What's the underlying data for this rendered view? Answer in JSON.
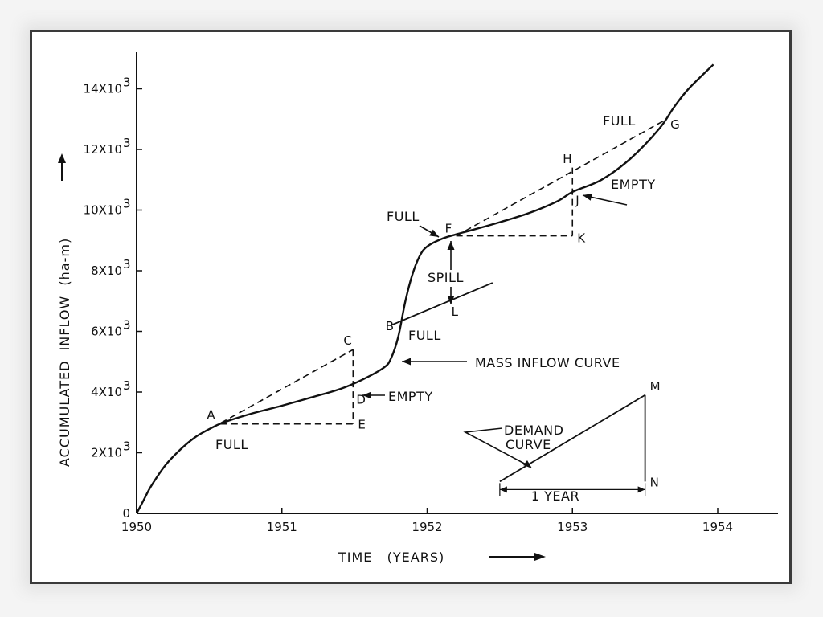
{
  "chart_data": {
    "type": "line",
    "xlabel": "TIME   (YEARS)",
    "ylabel": "ACCUMULATED  INFLOW  (ha-m)",
    "xlim": [
      1950,
      1954.4
    ],
    "ylim": [
      0,
      15000
    ],
    "x_ticks": [
      {
        "value": 1950,
        "label": "1950"
      },
      {
        "value": 1951,
        "label": "1951"
      },
      {
        "value": 1952,
        "label": "1952"
      },
      {
        "value": 1953,
        "label": "1953"
      },
      {
        "value": 1954,
        "label": "1954"
      }
    ],
    "y_ticks": [
      {
        "value": 0,
        "label": "0"
      },
      {
        "value": 2000,
        "label": "2X10"
      },
      {
        "value": 4000,
        "label": "4X10"
      },
      {
        "value": 6000,
        "label": "6X10"
      },
      {
        "value": 8000,
        "label": "8X10"
      },
      {
        "value": 10000,
        "label": "10X10"
      },
      {
        "value": 12000,
        "label": "12X10"
      },
      {
        "value": 14000,
        "label": "14X10"
      }
    ],
    "y_tick_exponent": "3",
    "mass_inflow_curve": {
      "x": [
        1950,
        1950.05,
        1950.1,
        1950.2,
        1950.3,
        1950.4,
        1950.5,
        1950.6,
        1950.8,
        1951.0,
        1951.2,
        1951.4,
        1951.55,
        1951.7,
        1951.75,
        1951.8,
        1951.85,
        1951.9,
        1951.95,
        1952.0,
        1952.1,
        1952.2,
        1952.3,
        1952.5,
        1952.7,
        1952.9,
        1953.0,
        1953.2,
        1953.4,
        1953.6,
        1953.7,
        1953.8,
        1953.97
      ],
      "y": [
        0,
        450,
        900,
        1600,
        2100,
        2500,
        2780,
        3000,
        3300,
        3550,
        3820,
        4100,
        4400,
        4800,
        5100,
        5800,
        7000,
        7900,
        8500,
        8800,
        9050,
        9200,
        9330,
        9600,
        9900,
        10300,
        10600,
        11000,
        11700,
        12700,
        13400,
        14000,
        14800
      ]
    },
    "dashed_lines": [
      {
        "from": [
          1950.58,
          2980
        ],
        "to": [
          1951.49,
          5400
        ]
      },
      {
        "from": [
          1951.49,
          5400
        ],
        "to": [
          1951.49,
          2950
        ]
      },
      {
        "from": [
          1950.58,
          2950
        ],
        "to": [
          1951.49,
          2950
        ]
      },
      {
        "from": [
          1952.2,
          9150
        ],
        "to": [
          1953.63,
          12950
        ]
      },
      {
        "from": [
          1953.0,
          11400
        ],
        "to": [
          1953.0,
          9150
        ]
      },
      {
        "from": [
          1952.2,
          9150
        ],
        "to": [
          1953.0,
          9150
        ]
      }
    ],
    "demand_line": {
      "from": [
        1951.75,
        6200
      ],
      "to": [
        1952.45,
        7600
      ]
    },
    "points": [
      {
        "name": "A",
        "x": 1950.55,
        "y": 2960,
        "dx": -12,
        "dy": -6
      },
      {
        "name": "B",
        "x": 1951.78,
        "y": 6150,
        "dx": -12,
        "dy": 4
      },
      {
        "name": "C",
        "x": 1951.49,
        "y": 5400,
        "dx": -12,
        "dy": -6
      },
      {
        "name": "D",
        "x": 1951.49,
        "y": 4150,
        "dx": 4,
        "dy": 20
      },
      {
        "name": "E",
        "x": 1951.49,
        "y": 2950,
        "dx": 6,
        "dy": 6
      },
      {
        "name": "F",
        "x": 1952.2,
        "y": 9150,
        "dx": -14,
        "dy": -4
      },
      {
        "name": "G",
        "x": 1953.63,
        "y": 12950,
        "dx": 8,
        "dy": 10
      },
      {
        "name": "H",
        "x": 1953.0,
        "y": 11450,
        "dx": -12,
        "dy": -4
      },
      {
        "name": "J",
        "x": 1953.0,
        "y": 10550,
        "dx": 4,
        "dy": 14
      },
      {
        "name": "K",
        "x": 1953.0,
        "y": 9150,
        "dx": 6,
        "dy": 8
      },
      {
        "name": "L",
        "x": 1952.2,
        "y": 7100,
        "dx": -6,
        "dy": 22
      },
      {
        "name": "M",
        "x": 1953.5,
        "y": 3900,
        "dx": 6,
        "dy": -6
      },
      {
        "name": "N",
        "x": 1953.5,
        "y": 1050,
        "dx": 6,
        "dy": 6
      }
    ],
    "annotations": {
      "full_a": "FULL",
      "full_b": "FULL",
      "full_f": "FULL",
      "full_g": "FULL",
      "empty_d": "EMPTY",
      "empty_j": "EMPTY",
      "spill": "SPILL",
      "mass_inflow_curve": "MASS  INFLOW  CURVE",
      "demand_curve_1": "DEMAND",
      "demand_curve_2": "CURVE",
      "one_year": "1 YEAR"
    },
    "demand_triangle": {
      "start": [
        1952.5,
        1050
      ],
      "end_x": 1953.5,
      "top_y": 3900
    }
  }
}
